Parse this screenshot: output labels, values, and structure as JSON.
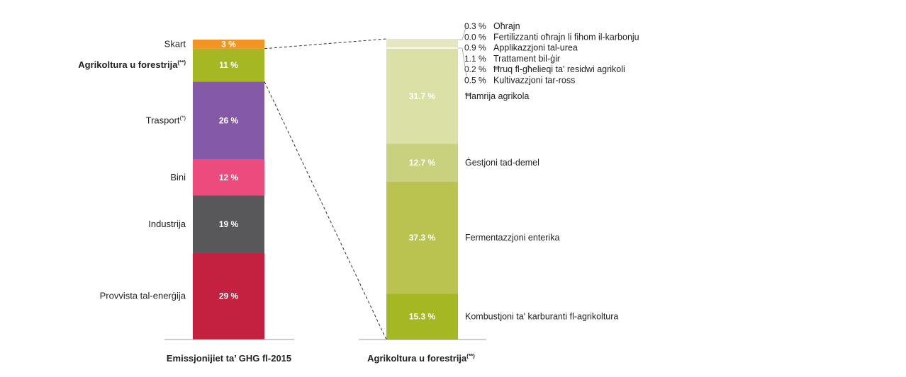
{
  "chart_data": [
    {
      "type": "bar",
      "stacked": true,
      "xlabel": "Emissjonijiet ta’ GHG fl-2015",
      "segments": [
        {
          "label": "Provvista tal-enerġija",
          "value": 29,
          "display": "29 %",
          "color": "#c42141"
        },
        {
          "label": "Industrija",
          "value": 19,
          "display": "19 %",
          "color": "#58575a"
        },
        {
          "label": "Bini",
          "value": 12,
          "display": "12 %",
          "color": "#ec4c7d"
        },
        {
          "label": "Trasport",
          "label_sup": "(*)",
          "value": 26,
          "display": "26 %",
          "color": "#8459a6"
        },
        {
          "label": "Agrikoltura u forestrija",
          "label_sup": "(**)",
          "value": 11,
          "display": "11 %",
          "color": "#a5b723",
          "bold": true
        },
        {
          "label": "Skart",
          "value": 3,
          "display": "3 %",
          "color": "#f19421"
        }
      ]
    },
    {
      "type": "bar",
      "stacked": true,
      "xlabel": "Agrikoltura u forestrija",
      "xlabel_sup": "(**)",
      "segments": [
        {
          "label": "Kombustjoni ta' karburanti fl-agrikoltura",
          "value": 15.3,
          "display": "15.3 %",
          "color": "#a5b723"
        },
        {
          "label": "Fermentazzjoni enterika",
          "value": 37.3,
          "display": "37.3 %",
          "color": "#bac34f"
        },
        {
          "label": "Ġestjoni tad-demel",
          "value": 12.7,
          "display": "12.7 %",
          "color": "#c9d07e"
        },
        {
          "label": "Ħamrija agrikola",
          "value": 31.7,
          "display": "31.7 %",
          "color": "#dbe0a7"
        },
        {
          "label": "Kultivazzjoni tar-ross",
          "value": 0.5,
          "display": "0.5 %",
          "color": "#e4e7c0"
        },
        {
          "label": "Ħruq fl-għelieqi ta' residwi agrikoli",
          "value": 0.2,
          "display": "0.2 %",
          "color": "#e4e7c0"
        },
        {
          "label": "Trattament bil-ġir",
          "value": 1.1,
          "display": "1.1 %",
          "color": "#e4e7c0"
        },
        {
          "label": "Applikazzjoni tal-urea",
          "value": 0.9,
          "display": "0.9 %",
          "color": "#e4e7c0"
        },
        {
          "label": "Fertilizzanti oħrajn li fihom il-karbonju",
          "value": 0.0,
          "display": "0.0 %",
          "color": "#e4e7c0"
        },
        {
          "label": "Oħrajn",
          "value": 0.3,
          "display": "0.3 %",
          "color": "#e4e7c0"
        }
      ]
    }
  ]
}
